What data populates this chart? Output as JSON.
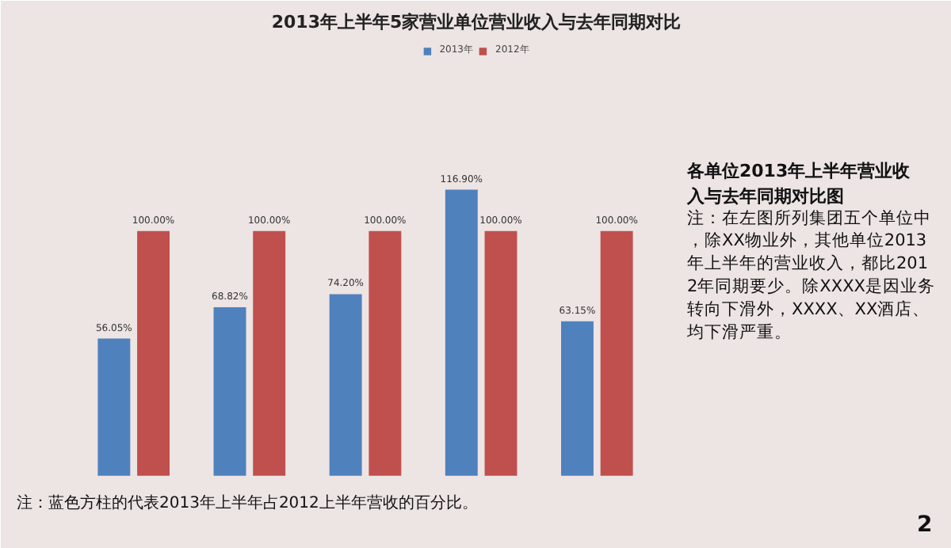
{
  "chart_data": {
    "type": "bar",
    "title": "2013年上半年5家营业单位营业收入与去年同期对比",
    "categories": [
      null,
      null,
      null,
      null,
      null
    ],
    "series": [
      {
        "name": "2013年",
        "color": "#4f81bd",
        "values": [
          56.05,
          68.82,
          74.2,
          116.9,
          63.15
        ],
        "value_labels": [
          "56.05%",
          "68.82%",
          "74.20%",
          "116.90%",
          "63.15%"
        ]
      },
      {
        "name": "2012年",
        "color": "#c0504d",
        "values": [
          100,
          100,
          100,
          100,
          100
        ],
        "value_labels": [
          "100.00%",
          "100.00%",
          "100.00%",
          "100.00%",
          "100.00%"
        ]
      }
    ],
    "legend": "top",
    "grid": false,
    "tick_labels": false,
    "annotations": [
      "各单位2013年上半年营业收入与去年同期对比图",
      "注：在左图所列集团五个单位中，除XX物业外，其他单位2013年上半年的营业收入，都比2012年同期要少。除XXXX是因业务转向下滑外，XXXX、XX酒店、均下滑严重。",
      "注：蓝色方柱的代表2013年上半年占2012上半年营收的百分比。",
      "2"
    ]
  }
}
